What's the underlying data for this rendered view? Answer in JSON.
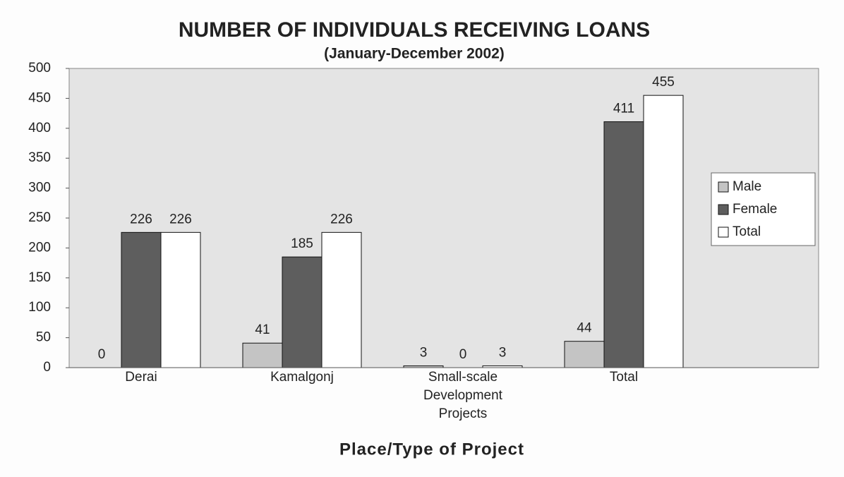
{
  "chart_data": {
    "type": "bar",
    "title": "NUMBER OF INDIVIDUALS RECEIVING LOANS",
    "subtitle": "(January-December 2002)",
    "x_label": "Place/Type of Project",
    "categories": [
      "Derai",
      "Kamalgonj",
      "Small-scale Development Projects",
      "Total"
    ],
    "series": [
      {
        "name": "Male",
        "color": "#c4c4c4",
        "values": [
          0,
          41,
          3,
          44
        ]
      },
      {
        "name": "Female",
        "color": "#5e5e5e",
        "values": [
          226,
          185,
          0,
          411
        ]
      },
      {
        "name": "Total",
        "color": "#ffffff",
        "values": [
          226,
          226,
          3,
          455
        ]
      }
    ],
    "ylim": [
      0,
      500
    ],
    "yticks": [
      0,
      50,
      100,
      150,
      200,
      250,
      300,
      350,
      400,
      450,
      500
    ],
    "grid": false,
    "legend": "right"
  }
}
